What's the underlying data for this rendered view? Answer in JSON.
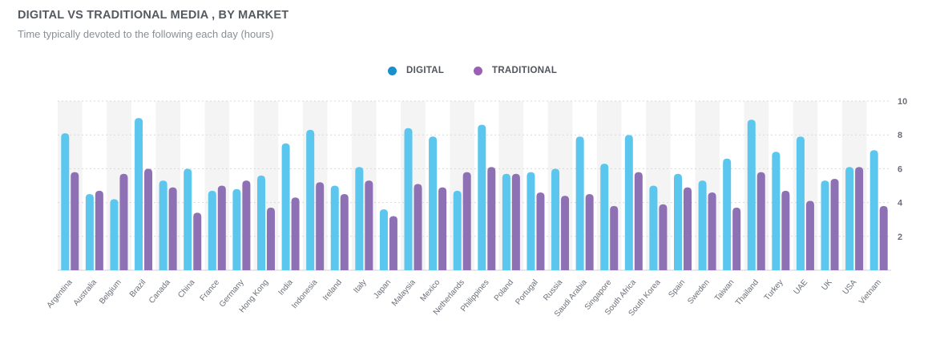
{
  "header": {
    "title": "DIGITAL VS TRADITIONAL MEDIA , BY MARKET",
    "subtitle": "Time typically devoted to the following each day (hours)"
  },
  "colors": {
    "digital": "#5bc6ee",
    "traditional": "#8e71b5",
    "digital_legend": "#1a8fc9",
    "traditional_legend": "#9b5fb7",
    "band": "#f4f4f4"
  },
  "chart_data": {
    "type": "bar",
    "title": "DIGITAL VS TRADITIONAL MEDIA , BY MARKET",
    "subtitle": "Time typically devoted to the following each day (hours)",
    "xlabel": "",
    "ylabel": "",
    "ylim": [
      0,
      10
    ],
    "yticks": [
      2,
      4,
      6,
      8,
      10
    ],
    "grid": true,
    "legend_position": "top-center",
    "categories": [
      "Argentina",
      "Australia",
      "Belgium",
      "Brazil",
      "Canada",
      "China",
      "France",
      "Germany",
      "Hong Kong",
      "India",
      "Indonesia",
      "Ireland",
      "Italy",
      "Japan",
      "Malaysia",
      "Mexico",
      "Netherlands",
      "Philippines",
      "Poland",
      "Portugal",
      "Russia",
      "Saudi Arabia",
      "Singapore",
      "South Africa",
      "South Korea",
      "Spain",
      "Sweden",
      "Taiwan",
      "Thailand",
      "Turkey",
      "UAE",
      "UK",
      "USA",
      "Vietnam"
    ],
    "series": [
      {
        "name": "DIGITAL",
        "values": [
          8.1,
          4.5,
          4.2,
          9.0,
          5.3,
          6.0,
          4.7,
          4.8,
          5.6,
          7.5,
          8.3,
          5.0,
          6.1,
          3.6,
          8.4,
          7.9,
          4.7,
          8.6,
          5.7,
          5.8,
          6.0,
          7.9,
          6.3,
          8.0,
          5.0,
          5.7,
          5.3,
          6.6,
          8.9,
          7.0,
          7.9,
          5.3,
          6.1,
          7.1
        ]
      },
      {
        "name": "TRADITIONAL",
        "values": [
          5.8,
          4.7,
          5.7,
          6.0,
          4.9,
          3.4,
          5.0,
          5.3,
          3.7,
          4.3,
          5.2,
          4.5,
          5.3,
          3.2,
          5.1,
          4.9,
          5.8,
          6.1,
          5.7,
          4.6,
          4.4,
          4.5,
          3.8,
          5.8,
          3.9,
          4.9,
          4.6,
          3.7,
          5.8,
          4.7,
          4.1,
          5.4,
          6.1,
          3.8
        ]
      }
    ]
  }
}
